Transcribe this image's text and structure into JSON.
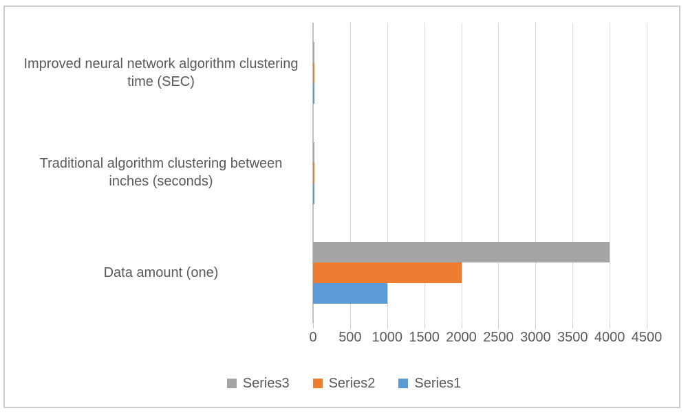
{
  "chart_data": {
    "type": "bar",
    "orientation": "horizontal",
    "title": "",
    "xlabel": "",
    "ylabel": "",
    "categories": [
      "Improved neural network algorithm clustering time (SEC)",
      "Traditional algorithm clustering between inches (seconds)",
      "Data amount (one)"
    ],
    "series": [
      {
        "name": "Series1",
        "color": "#5B9BD5",
        "values": [
          15,
          20,
          1000
        ]
      },
      {
        "name": "Series2",
        "color": "#ED7D31",
        "values": [
          15,
          20,
          2000
        ]
      },
      {
        "name": "Series3",
        "color": "#A5A5A5",
        "values": [
          15,
          20,
          4000
        ]
      }
    ],
    "xlim": [
      0,
      4500
    ],
    "x_ticks": [
      0,
      500,
      1000,
      1500,
      2000,
      2500,
      3000,
      3500,
      4000,
      4500
    ],
    "x_tick_labels": [
      "0",
      "500",
      "1000",
      "1500",
      "2000",
      "2500",
      "3000",
      "3500",
      "4000",
      "4500"
    ],
    "grid": true,
    "legend_position": "bottom"
  },
  "legend": {
    "items": [
      {
        "label": "Series3",
        "color": "#A5A5A5"
      },
      {
        "label": "Series2",
        "color": "#ED7D31"
      },
      {
        "label": "Series1",
        "color": "#5B9BD5"
      }
    ]
  },
  "colors": {
    "text": "#595959",
    "gridline": "#d9d9d9",
    "axis_line": "#c0c0c0",
    "frame_border": "#cbcbcb",
    "background": "#ffffff"
  }
}
